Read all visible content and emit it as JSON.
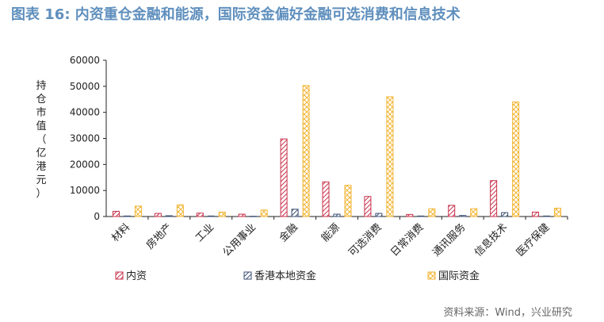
{
  "title": "图表 16: 内资重仓金融和能源，国际资金偏好金融可选消费和信息技术",
  "source": "资料来源：Wind，兴业研究",
  "colors": {
    "title": "#5f8fbd",
    "domestic": "#c8324b",
    "hongkong": "#3c4f73",
    "international": "#f2b636"
  },
  "chart_data": {
    "type": "bar",
    "title": "",
    "xlabel": "",
    "ylabel": "持仓市值（亿港元）",
    "ylim": [
      0,
      60000
    ],
    "yticks": [
      0,
      10000,
      20000,
      30000,
      40000,
      50000,
      60000
    ],
    "grid": false,
    "legend_position": "bottom",
    "categories": [
      "材料",
      "房地产",
      "工业",
      "公用事业",
      "金融",
      "能源",
      "可选消费",
      "日常消费",
      "通讯服务",
      "信息技术",
      "医疗保健"
    ],
    "series": [
      {
        "name": "内资",
        "values": [
          2000,
          1200,
          1300,
          900,
          29800,
          13300,
          7700,
          800,
          4300,
          13800,
          1700
        ]
      },
      {
        "name": "香港本地资金",
        "values": [
          200,
          300,
          200,
          100,
          2800,
          900,
          1200,
          200,
          400,
          1500,
          200
        ]
      },
      {
        "name": "国际资金",
        "values": [
          4000,
          4500,
          1700,
          2500,
          50300,
          12000,
          46000,
          3000,
          3000,
          44000,
          3200
        ]
      }
    ]
  }
}
